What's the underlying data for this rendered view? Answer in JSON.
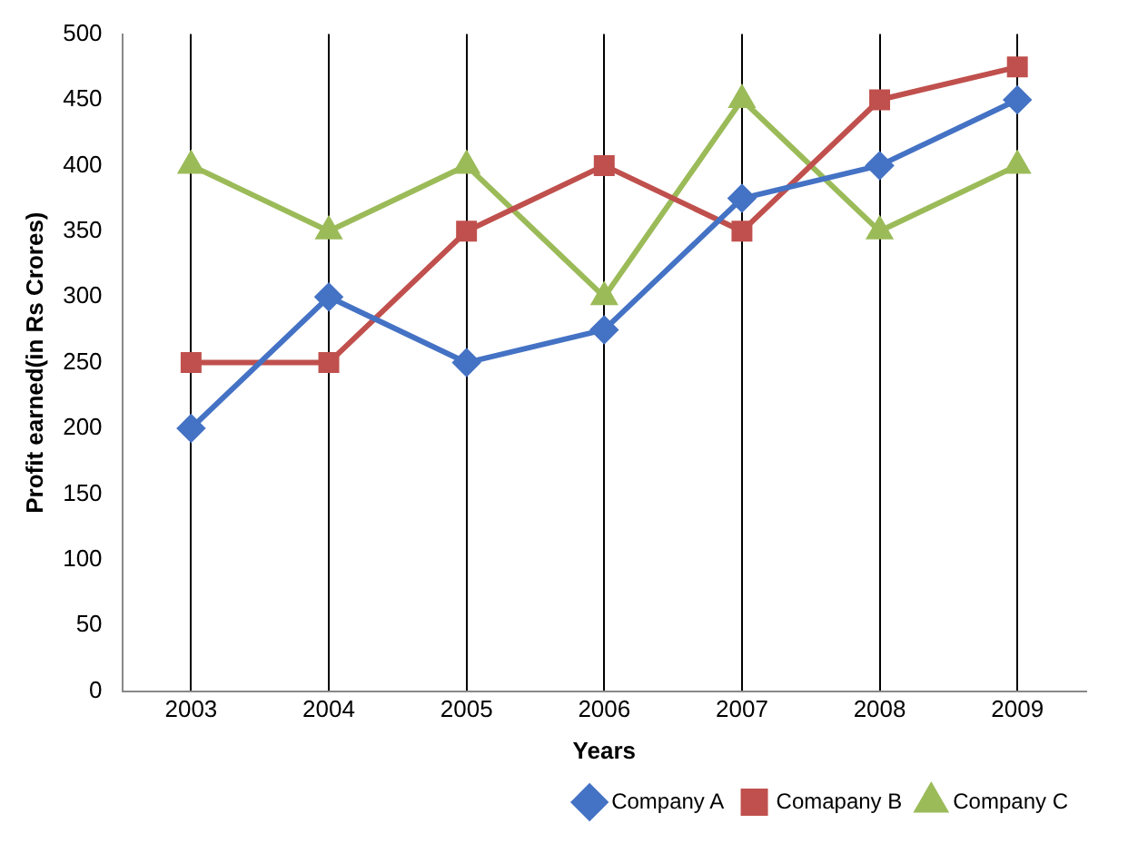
{
  "chart_data": {
    "type": "line",
    "xlabel": "Years",
    "ylabel": "Profit earned(in Rs Crores)",
    "categories": [
      "2003",
      "2004",
      "2005",
      "2006",
      "2007",
      "2008",
      "2009"
    ],
    "series": [
      {
        "name": "Company A",
        "color": "#4472c4",
        "marker": "diamond",
        "values": [
          200,
          300,
          250,
          275,
          375,
          400,
          450
        ]
      },
      {
        "name": "Comapany B",
        "color": "#c0504d",
        "marker": "square",
        "values": [
          250,
          250,
          350,
          400,
          350,
          450,
          475
        ]
      },
      {
        "name": "Company C",
        "color": "#9bbb59",
        "marker": "triangle",
        "values": [
          400,
          350,
          400,
          300,
          450,
          350,
          400
        ]
      }
    ],
    "ylim": [
      0,
      500
    ],
    "yticks": [
      0,
      50,
      100,
      150,
      200,
      250,
      300,
      350,
      400,
      450,
      500
    ],
    "grid": "x",
    "legend": "bottom right"
  }
}
